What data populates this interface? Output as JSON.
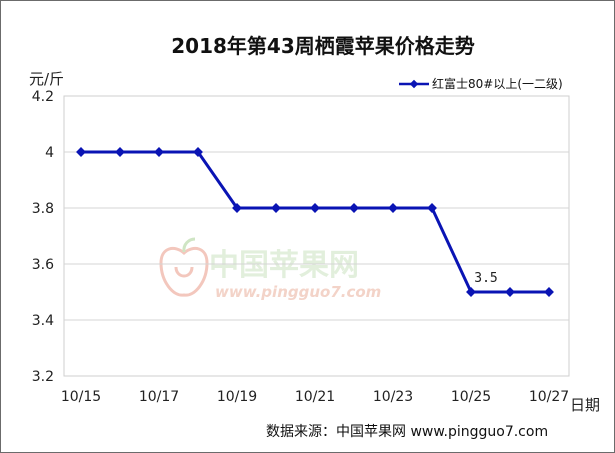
{
  "chart_data": {
    "type": "line",
    "title": "2018年第43周栖霞苹果价格走势",
    "ylabel": "元/斤",
    "xlabel": "日期",
    "categories": [
      "10/15",
      "10/16",
      "10/17",
      "10/18",
      "10/19",
      "10/20",
      "10/21",
      "10/22",
      "10/23",
      "10/24",
      "10/25",
      "10/26",
      "10/27"
    ],
    "x_tick_labels": [
      "10/15",
      "10/17",
      "10/19",
      "10/21",
      "10/23",
      "10/25",
      "10/27"
    ],
    "y_ticks": [
      "3.2",
      "3.4",
      "3.6",
      "3.8",
      "4",
      "4.2"
    ],
    "ylim": [
      3.2,
      4.2
    ],
    "grid": "horizontal",
    "legend_position": "top-right",
    "series": [
      {
        "name": "红富士80#以上(一二级)",
        "values": [
          4.0,
          4.0,
          4.0,
          4.0,
          3.8,
          3.8,
          3.8,
          3.8,
          3.8,
          3.8,
          3.5,
          3.5,
          3.5
        ]
      }
    ],
    "annotations": [
      {
        "index": 10,
        "text": "3.5"
      }
    ],
    "series_color": "#0a14b4"
  },
  "watermark": {
    "text": "中国苹果网",
    "url": "www.pingguo7.com"
  },
  "source": "数据来源：中国苹果网 www.pingguo7.com"
}
